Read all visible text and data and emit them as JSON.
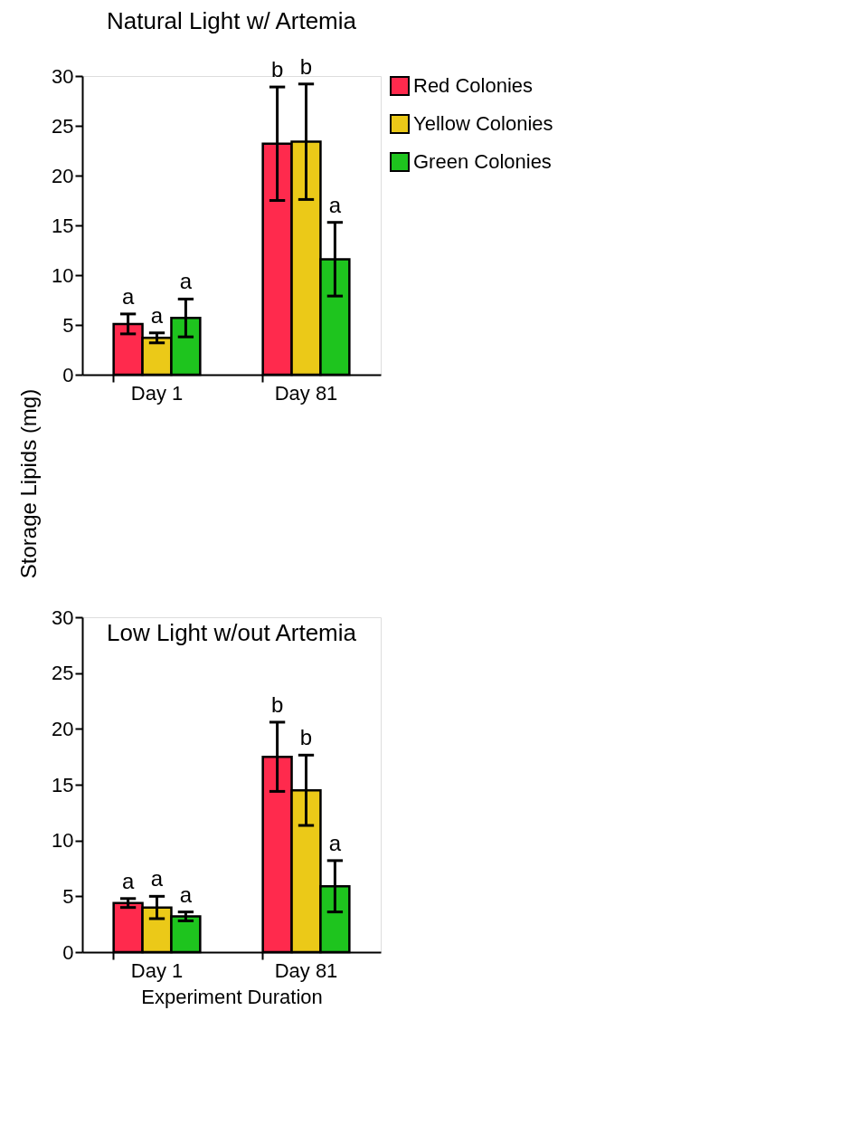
{
  "chart_data": [
    {
      "type": "bar",
      "title": "Natural Light w/ Artemia",
      "ylabel": "Storage Lipids (mg)",
      "categories": [
        "Day 1",
        "Day 81"
      ],
      "ylim": [
        0,
        30
      ],
      "yticks": [
        0,
        5,
        10,
        15,
        20,
        25,
        30
      ],
      "grid": false,
      "legend": "right",
      "series": [
        {
          "name": "Red Colonies",
          "color": "#ff2a4d",
          "values": [
            5.1,
            23.2
          ],
          "errors": [
            1.0,
            5.7
          ],
          "value_labels": [
            "a",
            "b"
          ]
        },
        {
          "name": "Yellow Colonies",
          "color": "#ebc918",
          "values": [
            3.7,
            23.4
          ],
          "errors": [
            0.5,
            5.8
          ],
          "value_labels": [
            "a",
            "b"
          ]
        },
        {
          "name": "Green Colonies",
          "color": "#1ec41e",
          "values": [
            5.7,
            11.6
          ],
          "errors": [
            1.9,
            3.7
          ],
          "value_labels": [
            "a",
            "a"
          ]
        }
      ]
    },
    {
      "type": "bar",
      "title": "Low Light w/out Artemia",
      "xlabel": "Experiment Duration",
      "categories": [
        "Day 1",
        "Day 81"
      ],
      "ylim": [
        0,
        30
      ],
      "yticks": [
        0,
        5,
        10,
        15,
        20,
        25,
        30
      ],
      "grid": false,
      "legend": false,
      "series": [
        {
          "color": "#ff2a4d",
          "values": [
            4.4,
            17.5
          ],
          "errors": [
            0.4,
            3.1
          ],
          "value_labels": [
            "a",
            "b"
          ]
        },
        {
          "color": "#ebc918",
          "values": [
            4.0,
            14.5
          ],
          "errors": [
            1.0,
            3.15
          ],
          "value_labels": [
            "a",
            "b"
          ]
        },
        {
          "color": "#1ec41e",
          "values": [
            3.2,
            5.9
          ],
          "errors": [
            0.4,
            2.3
          ],
          "value_labels": [
            "a",
            "a"
          ]
        }
      ]
    }
  ]
}
